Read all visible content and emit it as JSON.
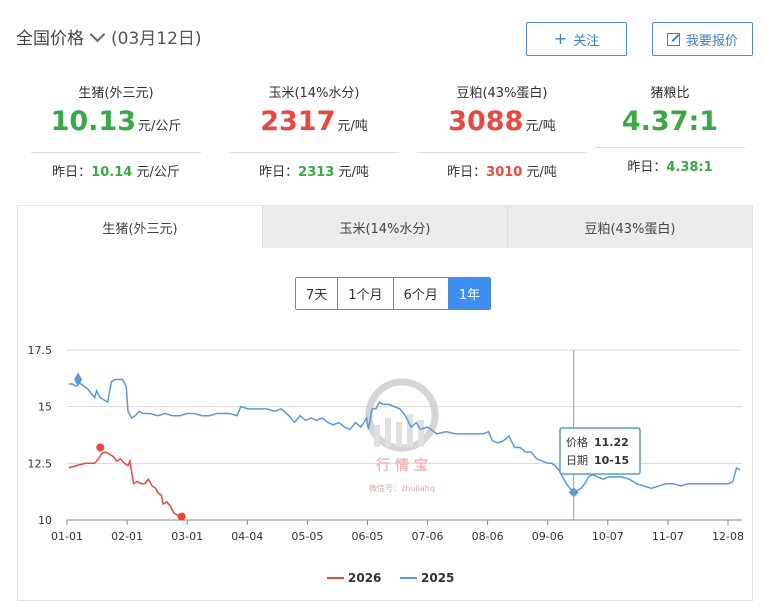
{
  "header": {
    "title": "全国价格",
    "date": "(03月12日)",
    "follow_label": "关注",
    "quote_label": "我要报价"
  },
  "stats": [
    {
      "name": "生猪(外三元)",
      "value": "10.13",
      "unit": "元/公斤",
      "prev_label": "昨日：",
      "prev_value": "10.14",
      "prev_unit": " 元/公斤",
      "color": "#3aa845"
    },
    {
      "name": "玉米(14%水分)",
      "value": "2317",
      "unit": "元/吨",
      "prev_label": "昨日：",
      "prev_value": "2313",
      "prev_unit": " 元/吨",
      "color": "#e8483f"
    },
    {
      "name": "豆粕(43%蛋白)",
      "value": "3088",
      "unit": "元/吨",
      "prev_label": "昨日：",
      "prev_value": "3010",
      "prev_unit": " 元/吨",
      "color": "#e8483f"
    },
    {
      "name": "猪粮比",
      "value": "4.37:1",
      "unit": "",
      "prev_label": "昨日：",
      "prev_value": "4.38:1",
      "prev_unit": "",
      "color": "#3aa845"
    }
  ],
  "tabs": [
    {
      "label": "生猪(外三元)",
      "active": true
    },
    {
      "label": "玉米(14%水分)",
      "active": false
    },
    {
      "label": "豆粕(43%蛋白)",
      "active": false
    }
  ],
  "ranges": [
    {
      "label": "7天",
      "active": false
    },
    {
      "label": "1个月",
      "active": false
    },
    {
      "label": "6个月",
      "active": false
    },
    {
      "label": "1年",
      "active": true
    }
  ],
  "watermark": {
    "name": "行 情 宝",
    "sub": "微信号：zhujiahq"
  },
  "tooltip": {
    "price_label": "价格",
    "price": "11.22",
    "date_label": "日期",
    "date": "10-15"
  },
  "chart_data": {
    "type": "line",
    "x_ticks": [
      "01-01",
      "02-01",
      "03-01",
      "04-04",
      "05-05",
      "06-05",
      "07-06",
      "08-06",
      "09-06",
      "10-07",
      "11-07",
      "12-08"
    ],
    "y_ticks": [
      "17.5",
      "15",
      "12.5",
      "10"
    ],
    "ylim": [
      10,
      17.5
    ],
    "grid": true,
    "legend_position": "bottom-center",
    "series": [
      {
        "name": "2026",
        "color": "#e8483f",
        "points": [
          [
            1,
            12.3
          ],
          [
            5,
            12.4
          ],
          [
            10,
            12.5
          ],
          [
            15,
            12.5
          ],
          [
            17,
            12.7
          ],
          [
            19,
            12.95
          ],
          [
            21,
            13.0
          ],
          [
            23,
            12.9
          ],
          [
            25,
            12.8
          ],
          [
            27,
            12.6
          ],
          [
            29,
            12.7
          ],
          [
            31,
            12.5
          ],
          [
            33,
            12.4
          ],
          [
            34,
            12.6
          ],
          [
            36,
            11.6
          ],
          [
            38,
            11.7
          ],
          [
            40,
            11.6
          ],
          [
            42,
            11.6
          ],
          [
            44,
            11.8
          ],
          [
            46,
            11.5
          ],
          [
            48,
            11.4
          ],
          [
            49,
            11.2
          ],
          [
            51,
            11.1
          ],
          [
            52,
            10.7
          ],
          [
            54,
            10.8
          ],
          [
            56,
            10.6
          ],
          [
            57,
            10.4
          ],
          [
            58,
            10.3
          ],
          [
            60,
            10.2
          ],
          [
            62,
            10.15
          ]
        ],
        "markers": [
          {
            "x": 18,
            "y": 13.2,
            "label": "max"
          },
          {
            "x": 62,
            "y": 10.15,
            "label": "last"
          }
        ]
      },
      {
        "name": "2025",
        "color": "#5b9bd5",
        "points": [
          [
            1,
            16.0
          ],
          [
            3,
            16.0
          ],
          [
            5,
            15.9
          ],
          [
            7,
            16.05
          ],
          [
            9,
            15.9
          ],
          [
            11,
            15.8
          ],
          [
            13,
            15.6
          ],
          [
            15,
            15.4
          ],
          [
            16,
            15.7
          ],
          [
            18,
            15.4
          ],
          [
            20,
            15.3
          ],
          [
            22,
            15.2
          ],
          [
            24,
            16.1
          ],
          [
            26,
            16.2
          ],
          [
            28,
            16.2
          ],
          [
            30,
            16.2
          ],
          [
            32,
            15.9
          ],
          [
            33,
            14.8
          ],
          [
            35,
            14.5
          ],
          [
            37,
            14.6
          ],
          [
            39,
            14.8
          ],
          [
            41,
            14.7
          ],
          [
            45,
            14.7
          ],
          [
            49,
            14.6
          ],
          [
            53,
            14.7
          ],
          [
            57,
            14.6
          ],
          [
            61,
            14.6
          ],
          [
            65,
            14.7
          ],
          [
            69,
            14.7
          ],
          [
            73,
            14.6
          ],
          [
            77,
            14.6
          ],
          [
            81,
            14.7
          ],
          [
            85,
            14.7
          ],
          [
            88,
            14.7
          ],
          [
            92,
            14.6
          ],
          [
            94,
            15.0
          ],
          [
            98,
            14.9
          ],
          [
            103,
            14.9
          ],
          [
            108,
            14.9
          ],
          [
            112,
            14.8
          ],
          [
            116,
            14.9
          ],
          [
            120,
            14.6
          ],
          [
            123,
            14.3
          ],
          [
            126,
            14.6
          ],
          [
            129,
            14.4
          ],
          [
            132,
            14.5
          ],
          [
            135,
            14.4
          ],
          [
            138,
            14.5
          ],
          [
            141,
            14.3
          ],
          [
            144,
            14.2
          ],
          [
            147,
            14.3
          ],
          [
            150,
            14.1
          ],
          [
            153,
            14.0
          ],
          [
            156,
            14.3
          ],
          [
            159,
            14.1
          ],
          [
            162,
            14.5
          ],
          [
            163,
            14.0
          ],
          [
            165,
            14.9
          ],
          [
            167,
            14.9
          ],
          [
            169,
            15.2
          ],
          [
            171,
            15.1
          ],
          [
            174,
            15.1
          ],
          [
            177,
            15.0
          ],
          [
            180,
            14.9
          ],
          [
            183,
            14.6
          ],
          [
            186,
            14.1
          ],
          [
            189,
            14.3
          ],
          [
            191,
            14.0
          ],
          [
            195,
            14.1
          ],
          [
            200,
            13.8
          ],
          [
            205,
            13.9
          ],
          [
            210,
            13.8
          ],
          [
            215,
            13.8
          ],
          [
            220,
            13.8
          ],
          [
            225,
            13.8
          ],
          [
            228,
            13.9
          ],
          [
            230,
            13.5
          ],
          [
            233,
            13.4
          ],
          [
            236,
            13.5
          ],
          [
            239,
            13.7
          ],
          [
            242,
            13.2
          ],
          [
            245,
            13.2
          ],
          [
            248,
            13.0
          ],
          [
            251,
            13.0
          ],
          [
            254,
            12.7
          ],
          [
            257,
            12.6
          ],
          [
            260,
            12.5
          ],
          [
            262,
            12.5
          ],
          [
            264,
            12.4
          ],
          [
            266,
            12.2
          ],
          [
            268,
            11.9
          ],
          [
            270,
            11.6
          ],
          [
            272,
            11.4
          ],
          [
            274,
            11.22
          ],
          [
            276,
            11.3
          ],
          [
            278,
            11.4
          ],
          [
            280,
            11.6
          ],
          [
            282,
            11.9
          ],
          [
            284,
            12.0
          ],
          [
            287,
            11.9
          ],
          [
            290,
            11.8
          ],
          [
            293,
            11.9
          ],
          [
            296,
            11.9
          ],
          [
            300,
            11.9
          ],
          [
            304,
            11.8
          ],
          [
            308,
            11.6
          ],
          [
            312,
            11.5
          ],
          [
            316,
            11.4
          ],
          [
            320,
            11.5
          ],
          [
            324,
            11.6
          ],
          [
            328,
            11.6
          ],
          [
            332,
            11.5
          ],
          [
            336,
            11.6
          ],
          [
            340,
            11.6
          ],
          [
            344,
            11.6
          ],
          [
            348,
            11.6
          ],
          [
            352,
            11.6
          ],
          [
            355,
            11.6
          ],
          [
            358,
            11.6
          ],
          [
            360,
            11.7
          ],
          [
            362,
            12.3
          ],
          [
            364,
            12.2
          ]
        ],
        "markers": [
          {
            "x": 6,
            "y": 16.2,
            "label": "max"
          },
          {
            "x": 274,
            "y": 11.22,
            "label": "min"
          }
        ]
      }
    ]
  }
}
